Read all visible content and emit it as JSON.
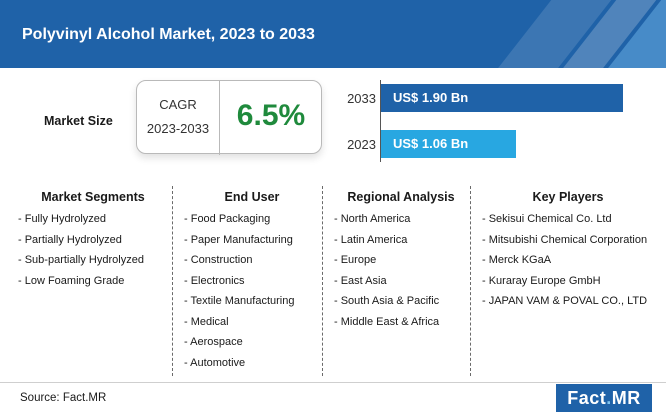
{
  "header": {
    "title": "Polyvinyl Alcohol Market, 2023 to 2033"
  },
  "market_size": {
    "label": "Market Size",
    "cagr_label": "CAGR",
    "cagr_period": "2023-2033",
    "cagr_value": "6.5%",
    "bars": [
      {
        "year": "2033",
        "label": "US$ 1.90 Bn",
        "value": 1.9,
        "color": "#1f62a8"
      },
      {
        "year": "2023",
        "label": "US$ 1.06 Bn",
        "value": 1.06,
        "color": "#28a7e1"
      }
    ]
  },
  "columns": [
    {
      "title": "Market Segments",
      "items": [
        "- Fully Hydrolyzed",
        "- Partially Hydrolyzed",
        "- Sub-partially Hydrolyzed",
        "- Low Foaming Grade"
      ]
    },
    {
      "title": "End User",
      "items": [
        "- Food Packaging",
        "- Paper Manufacturing",
        "- Construction",
        "- Electronics",
        "- Textile Manufacturing",
        "- Medical",
        "- Aerospace",
        "- Automotive"
      ]
    },
    {
      "title": "Regional Analysis",
      "items": [
        "- North America",
        "- Latin America",
        "- Europe",
        "- East Asia",
        "- South Asia & Pacific",
        "- Middle East & Africa"
      ]
    },
    {
      "title": "Key Players",
      "items": [
        "- Sekisui Chemical Co. Ltd",
        "- Mitsubishi Chemical Corporation",
        "- Merck KGaA",
        "- Kuraray Europe GmbH",
        "- JAPAN VAM & POVAL CO., LTD"
      ]
    }
  ],
  "footer": {
    "source": "Source: Fact.MR",
    "logo_main": "Fact",
    "logo_dot": ".",
    "logo_end": "MR"
  }
}
